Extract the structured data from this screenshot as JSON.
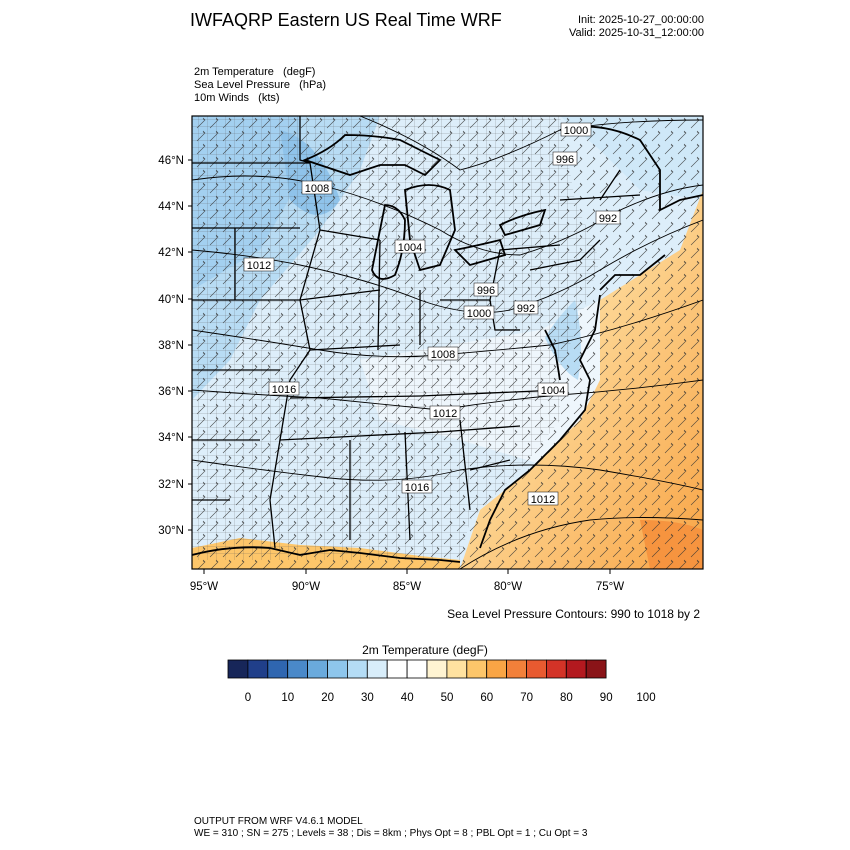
{
  "header": {
    "title": "IWFAQRP Eastern US Real Time WRF",
    "init": "Init: 2025-10-27_00:00:00",
    "valid": "Valid: 2025-10-31_12:00:00"
  },
  "fields": [
    "2m Temperature   (degF)",
    "Sea Level Pressure   (hPa)",
    "10m Winds   (kts)"
  ],
  "map": {
    "lat_ticks": [
      "46°N",
      "44°N",
      "42°N",
      "40°N",
      "38°N",
      "36°N",
      "34°N",
      "32°N",
      "30°N"
    ],
    "lon_ticks": [
      "95°W",
      "90°W",
      "85°W",
      "80°W",
      "75°W"
    ],
    "pressure_labels": [
      "1000",
      "996",
      "1008",
      "992",
      "1004",
      "1012",
      "996",
      "992",
      "1000",
      "1008",
      "1016",
      "1004",
      "1012",
      "1016",
      "1012"
    ],
    "contour_note": "Sea Level Pressure Contours: 990 to 1018 by 2"
  },
  "colorbar": {
    "title": "2m Temperature  (degF)",
    "labels": [
      "0",
      "10",
      "20",
      "30",
      "40",
      "50",
      "60",
      "70",
      "80",
      "90",
      "100"
    ],
    "colors": [
      "#172659",
      "#203f8a",
      "#2f66b0",
      "#4a89c9",
      "#6aaadc",
      "#8ec6ec",
      "#b4dcf5",
      "#d8edfa",
      "#ffffff",
      "#ffffff",
      "#fff4d2",
      "#ffe2a0",
      "#fdc66a",
      "#f9a545",
      "#f2803a",
      "#e85a30",
      "#d33327",
      "#b3191f",
      "#8a1418"
    ]
  },
  "footer": {
    "line1": "OUTPUT FROM WRF V4.6.1 MODEL",
    "line2": "WE = 310 ; SN = 275 ; Levels = 38 ; Dis = 8km ; Phys Opt = 8 ; PBL Opt = 1 ; Cu Opt = 3"
  }
}
